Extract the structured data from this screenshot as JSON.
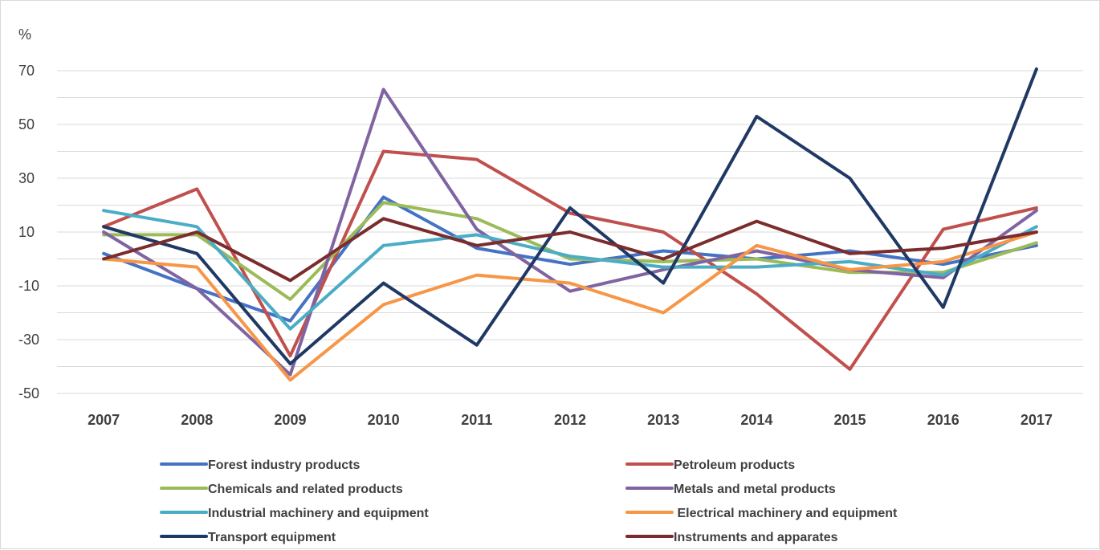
{
  "chart_data": {
    "type": "line",
    "title": "",
    "xlabel": "",
    "ylabel": "%",
    "ylim": [
      -50,
      70
    ],
    "yticks": [
      70,
      50,
      30,
      10,
      -10,
      -30,
      -50
    ],
    "grid": true,
    "legend_position": "bottom",
    "categories": [
      "2007",
      "2008",
      "2009",
      "2010",
      "2011",
      "2012",
      "2013",
      "2014",
      "2015",
      "2016",
      "2017"
    ],
    "series": [
      {
        "name": "Forest industry products",
        "color": "#4472c4",
        "values": [
          2,
          -11,
          -23,
          23,
          4,
          -2,
          3,
          0,
          3,
          -2,
          5
        ]
      },
      {
        "name": "Petroleum products",
        "color": "#c0504d",
        "values": [
          12,
          26,
          -36,
          40,
          37,
          17,
          10,
          -13,
          -41,
          11,
          19
        ]
      },
      {
        "name": "Chemicals and related products",
        "color": "#9bbb59",
        "values": [
          9,
          9,
          -15,
          21,
          15,
          0,
          -1,
          0,
          -5,
          -5,
          6
        ]
      },
      {
        "name": "Metals and metal products",
        "color": "#8064a2",
        "values": [
          10,
          -11,
          -43,
          63,
          11,
          -12,
          -4,
          3,
          -4,
          -7,
          18
        ]
      },
      {
        "name": "Industrial machinery and equipment",
        "color": "#4bacc6",
        "values": [
          18,
          12,
          -26,
          5,
          9,
          1,
          -3,
          -3,
          -1,
          -6,
          12
        ]
      },
      {
        "name": " Electrical machinery and equipment",
        "color": "#f79646",
        "values": [
          0,
          -3,
          -45,
          -17,
          -6,
          -9,
          -20,
          5,
          -4,
          -1,
          10
        ]
      },
      {
        "name": "Transport equipment",
        "color": "#1f3864",
        "values": [
          12,
          2,
          -39,
          -9,
          -32,
          19,
          -9,
          53,
          30,
          -18,
          71
        ]
      },
      {
        "name": "Instruments and apparates",
        "color": "#7b2c2c",
        "values": [
          0,
          10,
          -8,
          15,
          5,
          10,
          0,
          14,
          2,
          4,
          10
        ]
      }
    ]
  }
}
